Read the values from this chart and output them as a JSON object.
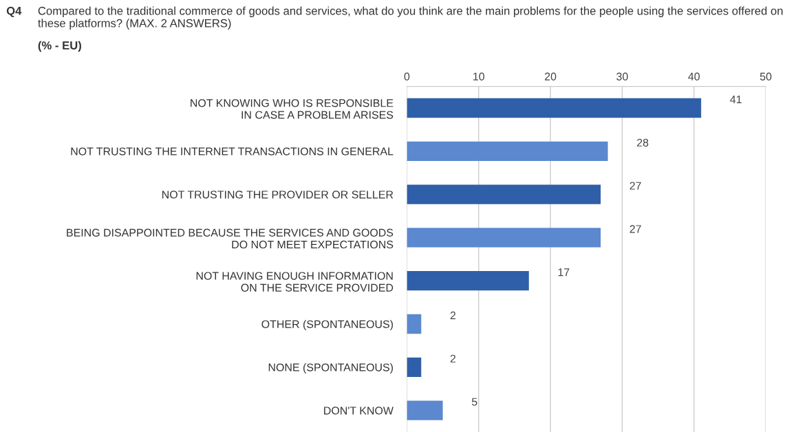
{
  "chart_data": {
    "type": "bar",
    "orientation": "horizontal",
    "title": "Q4 Compared to the traditional commerce of goods and services, what do you think are the main problems for the people using the services offered on these platforms? (MAX. 2 ANSWERS)",
    "subtitle": "(% - EU)",
    "categories": [
      "NOT KNOWING WHO IS RESPONSIBLE\nIN CASE A PROBLEM ARISES",
      "NOT TRUSTING THE INTERNET TRANSACTIONS IN GENERAL",
      "NOT TRUSTING THE PROVIDER OR SELLER",
      "BEING DISAPPOINTED BECAUSE THE SERVICES AND GOODS\nDO NOT MEET EXPECTATIONS",
      "NOT HAVING ENOUGH INFORMATION\nON THE SERVICE PROVIDED",
      "OTHER (SPONTANEOUS)",
      "NONE (SPONTANEOUS)",
      "DON'T KNOW"
    ],
    "values": [
      41,
      28,
      27,
      27,
      17,
      2,
      2,
      5
    ],
    "colors": [
      "#2f5fa8",
      "#5b88cf",
      "#2f5fa8",
      "#5b88cf",
      "#2f5fa8",
      "#5b88cf",
      "#2f5fa8",
      "#5b88cf"
    ],
    "xlim": [
      0,
      50
    ],
    "xticks": [
      0,
      10,
      20,
      30,
      40,
      50
    ],
    "grid": "x",
    "data_labels": true
  }
}
